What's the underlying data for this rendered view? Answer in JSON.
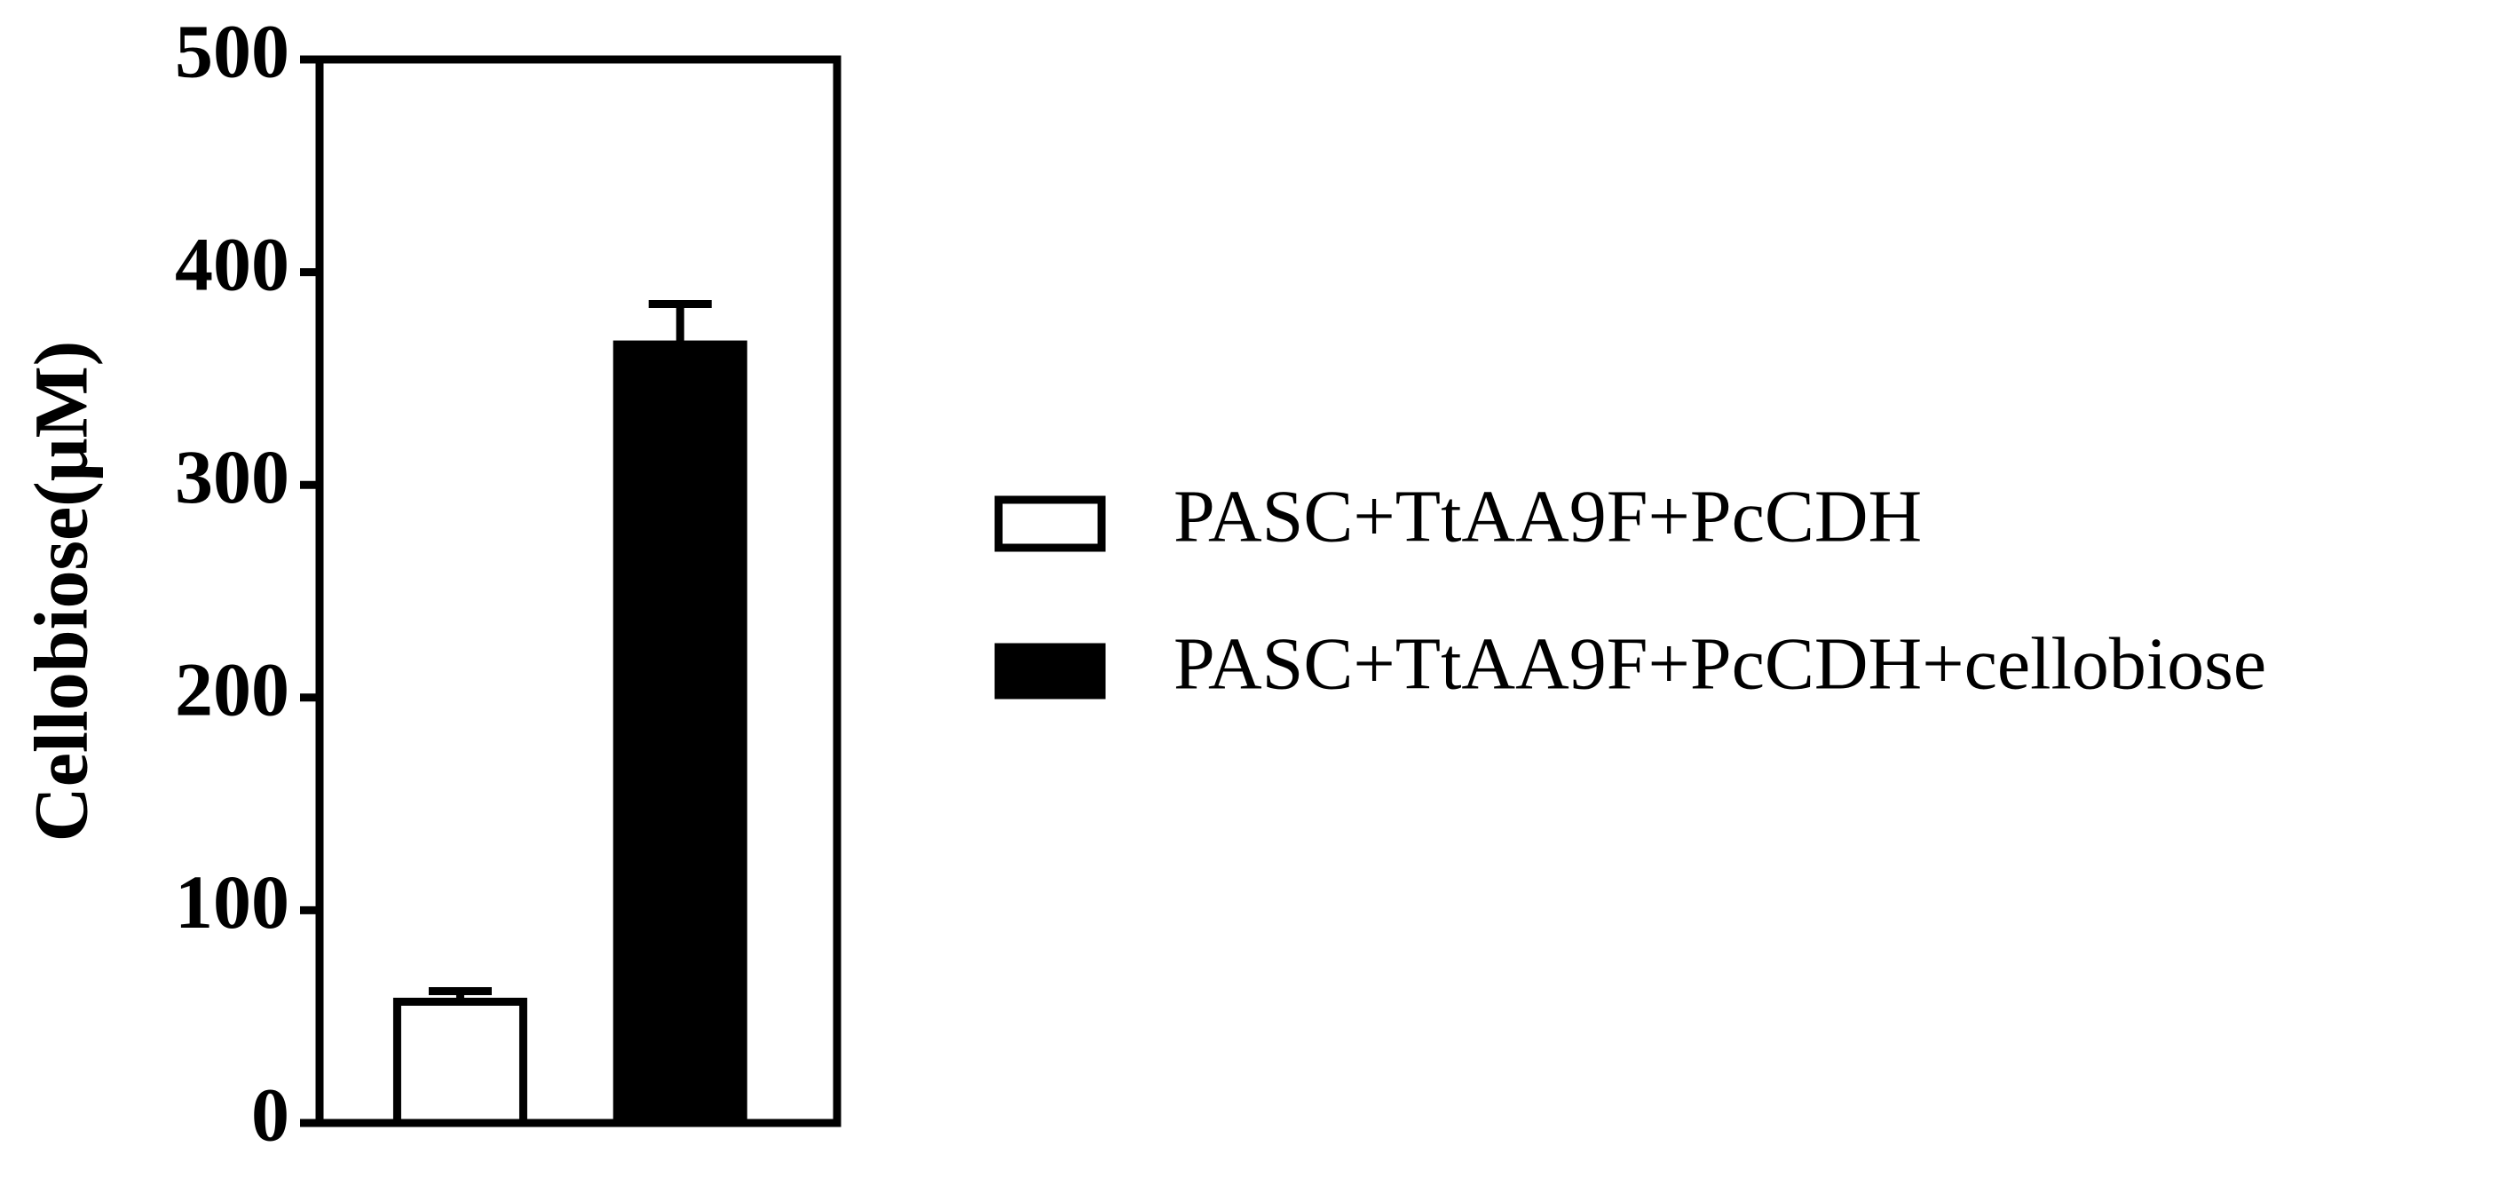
{
  "chart_data": {
    "type": "bar",
    "ylabel": "Cellobiose(μM)",
    "categories": [
      null
    ],
    "series": [
      {
        "name": "PASC+TtAA9F+PcCDH",
        "color": "#ffffff",
        "values": [
          57
        ],
        "errors": [
          5
        ]
      },
      {
        "name": "PASC+TtAA9F+PcCDH+cellobiose",
        "color": "#000000",
        "values": [
          366
        ],
        "errors": [
          19
        ]
      }
    ],
    "ylim": [
      0,
      500
    ],
    "yticks": [
      0,
      100,
      200,
      300,
      400,
      500
    ],
    "grid": false,
    "legend": "right"
  }
}
